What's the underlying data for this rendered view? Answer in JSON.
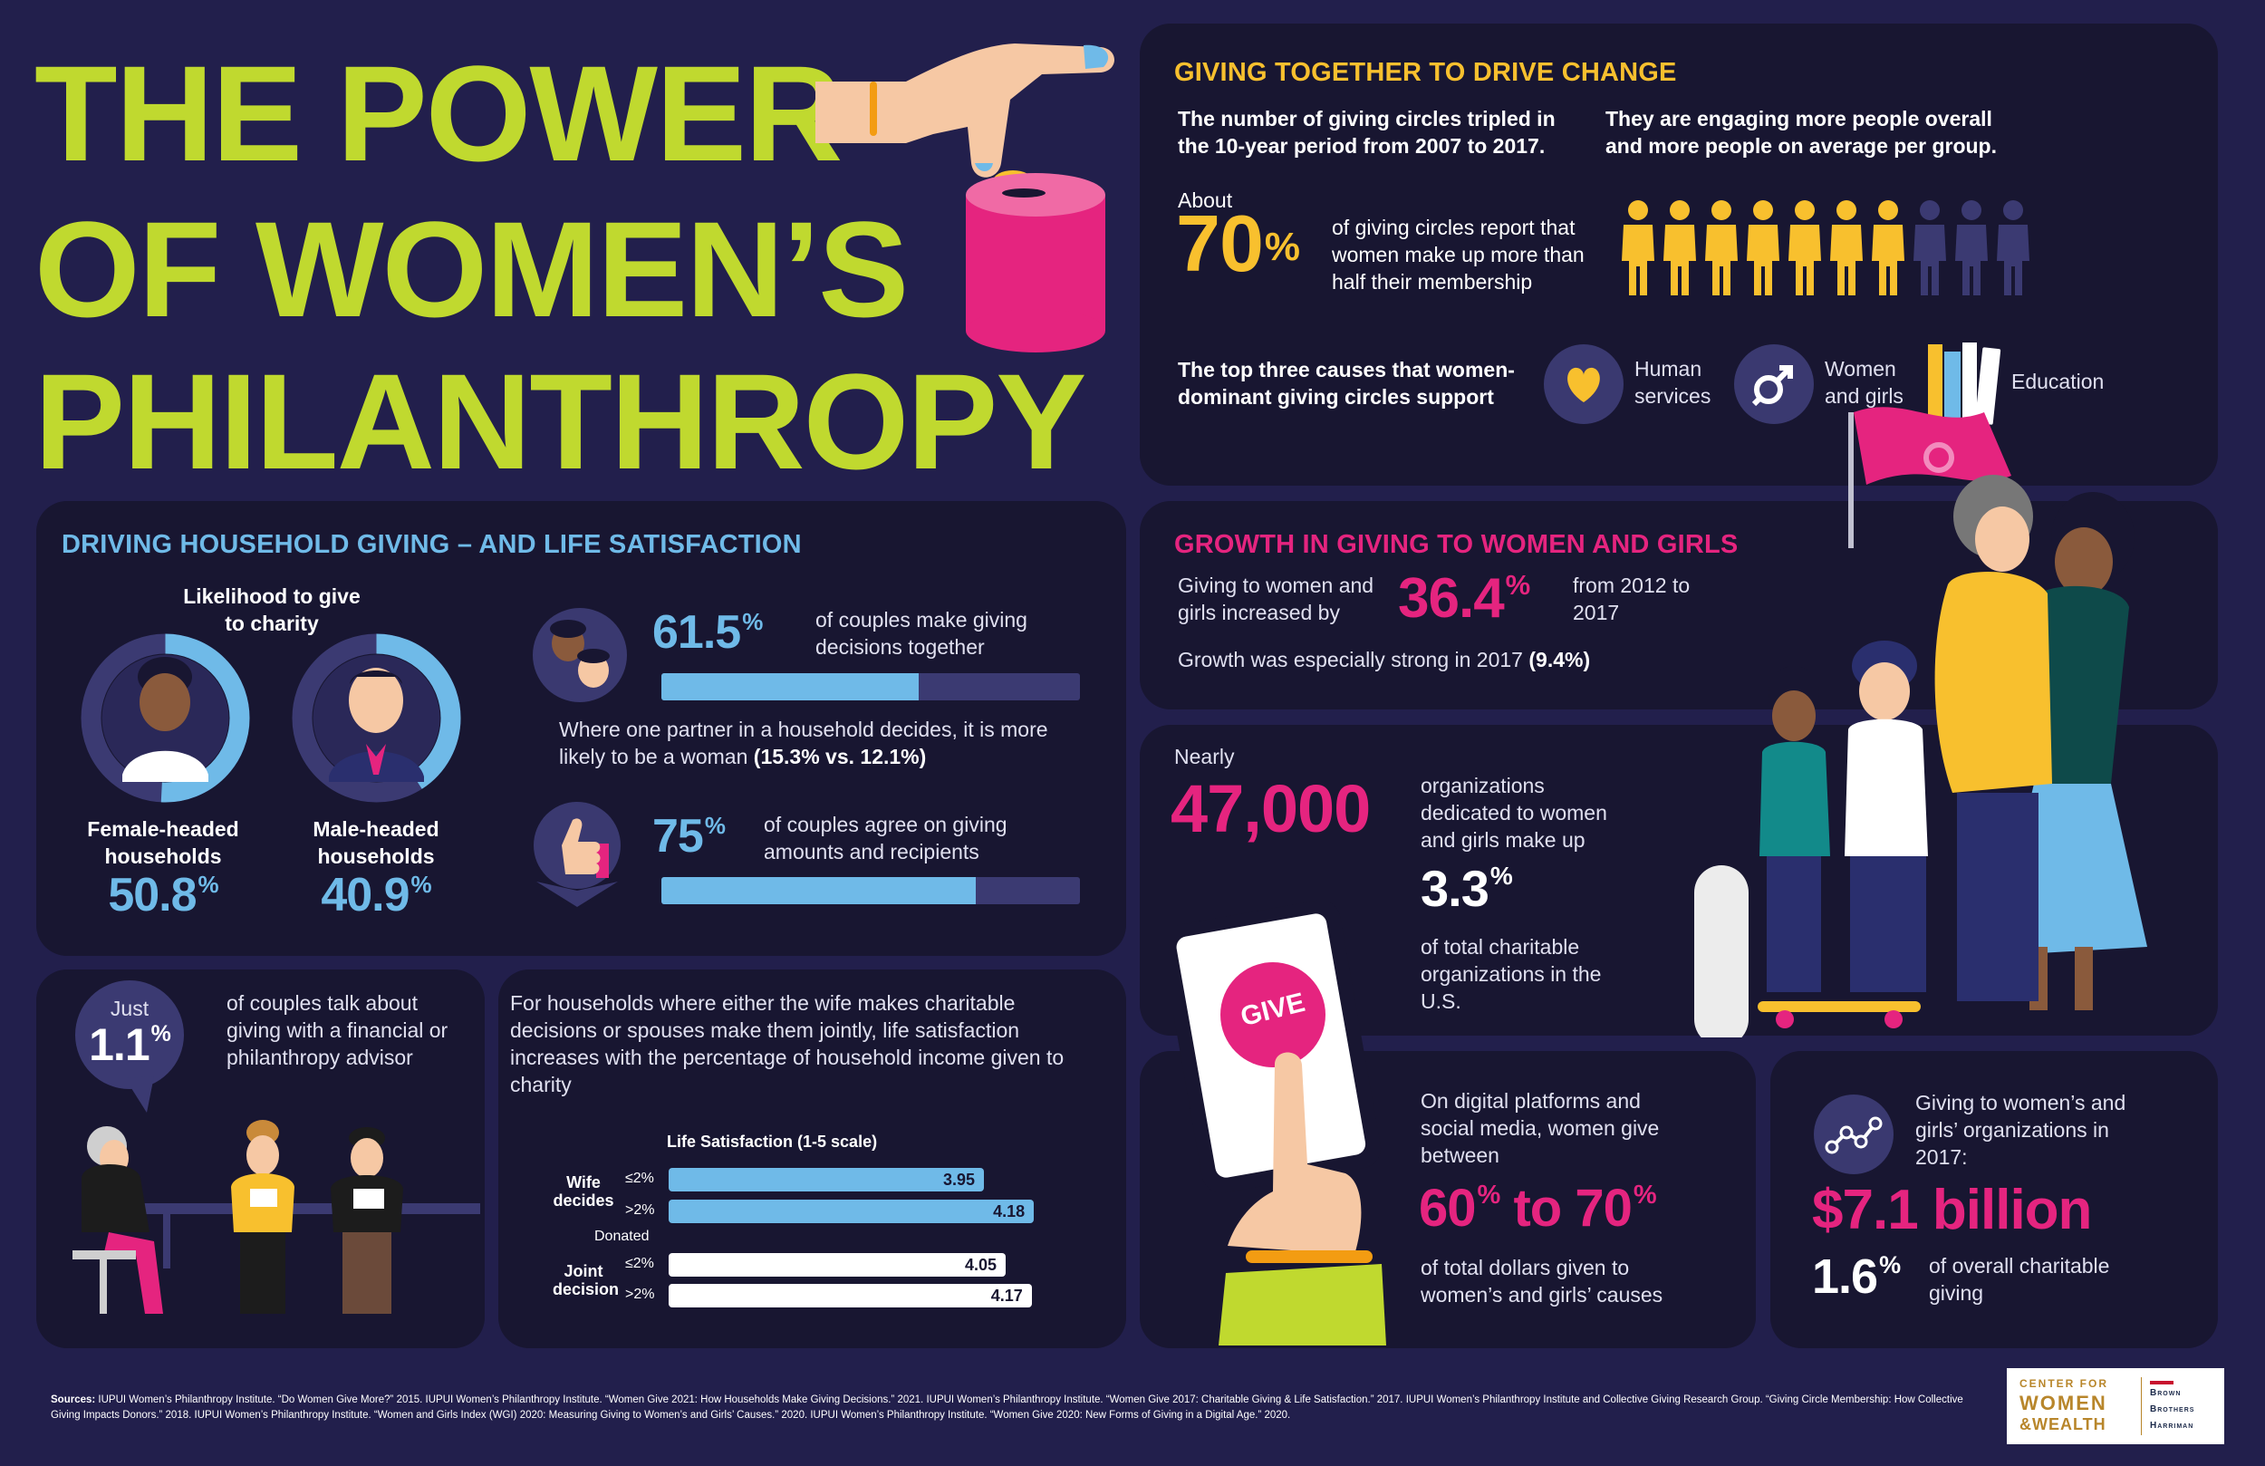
{
  "title": {
    "line1": "THE POWER",
    "line2": "OF WOMEN’S",
    "line3": "PHILANTHROPY"
  },
  "giving_together": {
    "heading": "GIVING TOGETHER TO DRIVE CHANGE",
    "tripled_text": "The number of giving circles tripled in the 10-year period from 2007 to 2017.",
    "engaging_text": "They are engaging more people overall and more people on average per group.",
    "about_label": "About",
    "pct_value": "70",
    "pct_sign": "%",
    "pct_desc": "of giving circles report that women make up more than half their membership",
    "people_filled": 7,
    "people_total": 10,
    "causes_label": "The top three causes that women-dominant giving circles support",
    "causes": [
      {
        "label": "Human services",
        "icon": "heart-icon"
      },
      {
        "label": "Women and girls",
        "icon": "gender-symbol-icon"
      },
      {
        "label": "Education",
        "icon": "books-icon"
      }
    ]
  },
  "household": {
    "heading": "DRIVING HOUSEHOLD GIVING – AND LIFE SATISFACTION",
    "likelihood_label": "Likelihood to give to charity",
    "female_label": "Female-headed households",
    "female_value": "50.8",
    "female_fraction": 0.508,
    "male_label": "Male-headed households",
    "male_value": "40.9",
    "male_fraction": 0.409,
    "couples_together_value": "61.5",
    "couples_together_fraction": 0.615,
    "couples_together_desc": "of couples make giving decisions together",
    "one_partner_text": "Where one partner in a household decides, it is more likely to be a woman",
    "one_partner_stat": "(15.3% vs. 12.1%)",
    "agree_value": "75",
    "agree_fraction": 0.75,
    "agree_desc": "of couples agree on giving amounts and recipients",
    "pct_sign": "%"
  },
  "advisor": {
    "just_label": "Just",
    "value": "1.1",
    "pct_sign": "%",
    "desc": "of couples talk about giving with a financial or philanthropy advisor"
  },
  "life_satisfaction": {
    "intro": "For households where either the wife makes charitable decisions or spouses make them jointly, life satisfaction increases with the percentage of household income given to charity",
    "chart_title": "Life Satisfaction (1-5 scale)",
    "donated_label": "Donated",
    "group_wife": "Wife decides",
    "group_joint": "Joint decision",
    "tier_low": "≤2%",
    "tier_high": ">2%"
  },
  "chart_data": {
    "type": "bar",
    "title": "Life Satisfaction (1-5 scale)",
    "categories": [
      "Wife decides ≤2%",
      "Wife decides >2%",
      "Joint decision ≤2%",
      "Joint decision >2%"
    ],
    "values": [
      3.95,
      4.18,
      4.05,
      4.17
    ],
    "labels": [
      "3.95",
      "4.18",
      "4.05",
      "4.17"
    ],
    "colors": [
      "#6fbae8",
      "#6fbae8",
      "#ffffff",
      "#ffffff"
    ],
    "orientation": "horizontal"
  },
  "growth": {
    "heading": "GROWTH IN GIVING TO WOMEN AND GIRLS",
    "increase_text": "Giving to women and girls increased by",
    "increase_value": "36.4",
    "pct_sign": "%",
    "period_text": "from 2012 to 2017",
    "strong_text": "Growth was especially strong in 2017",
    "strong_value": "(9.4%)"
  },
  "organizations": {
    "nearly_label": "Nearly",
    "count": "47,000",
    "count_desc": "organizations dedicated to women and girls make up",
    "share_value": "3.3",
    "pct_sign": "%",
    "share_desc": "of total charitable organizations in the U.S."
  },
  "digital": {
    "give_button": "GIVE",
    "desc": "On digital platforms and social media, women give between",
    "range_low": "60",
    "range_mid": "to",
    "range_high": "70",
    "pct_sign": "%",
    "range_desc": "of total dollars given to women’s and girls’ causes"
  },
  "giving_2017": {
    "desc": "Giving to women’s and girls’ organizations in 2017:",
    "amount": "$7.1 billion",
    "share_value": "1.6",
    "pct_sign": "%",
    "share_desc": "of overall charitable giving"
  },
  "sources": {
    "label": "Sources:",
    "text": "IUPUI Women’s Philanthropy Institute. “Do Women Give More?” 2015. IUPUI Women’s Philanthropy Institute. “Women Give 2021: How Households Make Giving Decisions.” 2021. IUPUI Women’s Philanthropy Institute. “Women Give 2017: Charitable Giving & Life Satisfaction.” 2017. IUPUI Women’s Philanthropy Institute and Collective Giving Research Group. “Giving Circle Membership: How Collective Giving Impacts Donors.” 2018. IUPUI Women’s Philanthropy Institute. “Women and Girls Index (WGI) 2020: Measuring Giving to Women’s and Girls’ Causes.” 2020. IUPUI Women’s Philanthropy Institute. “Women Give 2020: New Forms of Giving in a Digital Age.” 2020."
  },
  "logo": {
    "center_line1": "CENTER FOR",
    "center_line2": "WOMEN",
    "center_line3": "&WEALTH",
    "bbh_line1": "Brown",
    "bbh_line2": "Brothers",
    "bbh_line3": "Harriman"
  },
  "colors": {
    "background": "#221f4c",
    "panel": "#181631",
    "lime": "#c0d92f",
    "blue": "#6fbae8",
    "pink": "#e5247f",
    "gold": "#f8c02e"
  }
}
